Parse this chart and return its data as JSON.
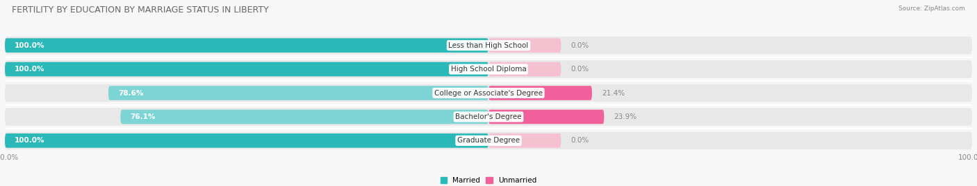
{
  "title": "FERTILITY BY EDUCATION BY MARRIAGE STATUS IN LIBERTY",
  "source": "Source: ZipAtlas.com",
  "categories": [
    "Less than High School",
    "High School Diploma",
    "College or Associate's Degree",
    "Bachelor's Degree",
    "Graduate Degree"
  ],
  "married": [
    100.0,
    100.0,
    78.6,
    76.1,
    100.0
  ],
  "unmarried": [
    0.0,
    0.0,
    21.4,
    23.9,
    0.0
  ],
  "married_color_full": "#2ab8b8",
  "married_color_partial": "#7dd4d4",
  "unmarried_color_full": "#f0609a",
  "unmarried_color_zero": "#f5c0d0",
  "bar_bg_color": "#e8e8e8",
  "row_bg_color": "#f2f2f2",
  "chart_bg": "#f7f7f7",
  "label_color_white": "#ffffff",
  "label_color_gray": "#888888",
  "title_color": "#666666",
  "title_fontsize": 9,
  "label_fontsize": 7.5,
  "cat_fontsize": 7.5,
  "tick_fontsize": 7.5,
  "bar_height": 0.6,
  "zero_bar_pct": 15,
  "legend_labels": [
    "Married",
    "Unmarried"
  ]
}
